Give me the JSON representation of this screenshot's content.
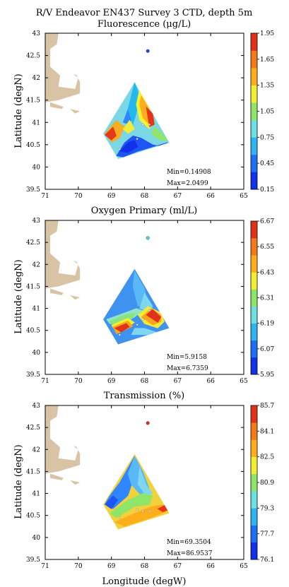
{
  "chart_data": [
    {
      "type": "contour-map",
      "title": "R/V Endeavor EN437 Survey 3 CTD, depth 5m",
      "subtitle": "Fluorescence (μg/L)",
      "xlabel": "",
      "ylabel": "Latitude (degN)",
      "xlim": [
        -71,
        -65
      ],
      "ylim": [
        39.5,
        43
      ],
      "x_ticks": [
        "71",
        "70",
        "69",
        "68",
        "67",
        "66",
        "65"
      ],
      "y_ticks": [
        "43",
        "42.5",
        "42",
        "41.5",
        "41",
        "40.5",
        "40",
        "39.5"
      ],
      "colorbar_ticks": [
        "1.95",
        "1.65",
        "1.35",
        "1.05",
        "0.75",
        "0.45",
        "0.15"
      ],
      "min_text": "Min=0.14908",
      "max_text": "Max=2.0499",
      "marker_color": "#2244dd",
      "marker": {
        "lon": -67.9,
        "lat": 42.6
      },
      "stations": [
        {
          "lon": -68.22,
          "lat": 40.63
        },
        {
          "lon": -68.75,
          "lat": 40.4
        },
        {
          "lon": -68.05,
          "lat": 40.95
        },
        {
          "lon": -67.85,
          "lat": 40.95
        }
      ],
      "field": {
        "base_color": "#7ad8e6",
        "patches": [
          {
            "color": "#2f86ff",
            "poly": [
              [
                -68.3,
                41.83
              ],
              [
                -68.4,
                41.5
              ],
              [
                -68.55,
                41.2
              ],
              [
                -68.65,
                41.0
              ],
              [
                -68.45,
                40.95
              ],
              [
                -68.3,
                41.3
              ]
            ]
          },
          {
            "color": "#23b8ee",
            "poly": [
              [
                -68.3,
                41.9
              ],
              [
                -68.15,
                41.6
              ],
              [
                -68.25,
                41.2
              ],
              [
                -68.35,
                40.95
              ],
              [
                -68.5,
                41.3
              ]
            ]
          },
          {
            "color": "#f4f233",
            "poly": [
              [
                -68.15,
                41.75
              ],
              [
                -67.9,
                41.45
              ],
              [
                -67.75,
                41.05
              ],
              [
                -67.85,
                40.85
              ],
              [
                -68.15,
                41.05
              ],
              [
                -68.25,
                41.4
              ]
            ]
          },
          {
            "color": "#ffae1b",
            "poly": [
              [
                -68.1,
                41.6
              ],
              [
                -67.85,
                41.3
              ],
              [
                -67.85,
                40.95
              ],
              [
                -68.05,
                41.1
              ],
              [
                -68.15,
                41.4
              ]
            ]
          },
          {
            "color": "#e63316",
            "poly": [
              [
                -67.95,
                41.35
              ],
              [
                -67.75,
                41.2
              ],
              [
                -67.7,
                40.95
              ],
              [
                -67.85,
                40.9
              ]
            ]
          },
          {
            "color": "#8fe46a",
            "poly": [
              [
                -67.7,
                40.9
              ],
              [
                -67.45,
                40.75
              ],
              [
                -67.3,
                40.6
              ],
              [
                -67.55,
                40.6
              ],
              [
                -67.8,
                40.75
              ]
            ]
          },
          {
            "color": "#f5ad24",
            "poly": [
              [
                -69.2,
                40.75
              ],
              [
                -68.85,
                41.05
              ],
              [
                -68.6,
                40.9
              ],
              [
                -68.75,
                40.65
              ],
              [
                -69.0,
                40.55
              ]
            ]
          },
          {
            "color": "#e33a1a",
            "poly": [
              [
                -69.2,
                40.72
              ],
              [
                -68.95,
                40.9
              ],
              [
                -68.85,
                40.7
              ],
              [
                -69.0,
                40.6
              ]
            ]
          },
          {
            "color": "#f0ee3a",
            "poly": [
              [
                -68.65,
                40.85
              ],
              [
                -68.45,
                41.05
              ],
              [
                -68.3,
                40.85
              ],
              [
                -68.5,
                40.75
              ]
            ]
          },
          {
            "color": "#1f55f5",
            "poly": [
              [
                -68.85,
                40.25
              ],
              [
                -68.6,
                40.55
              ],
              [
                -68.35,
                40.7
              ],
              [
                -68.1,
                40.65
              ],
              [
                -67.75,
                40.5
              ],
              [
                -67.4,
                40.45
              ],
              [
                -67.3,
                40.55
              ],
              [
                -68.2,
                40.35
              ],
              [
                -68.65,
                40.22
              ]
            ]
          },
          {
            "color": "#1131e8",
            "poly": [
              [
                -68.75,
                40.35
              ],
              [
                -68.5,
                40.55
              ],
              [
                -68.3,
                40.6
              ],
              [
                -68.2,
                40.45
              ],
              [
                -68.5,
                40.32
              ]
            ]
          }
        ]
      }
    },
    {
      "type": "contour-map",
      "subtitle": "Oxygen Primary (ml/L)",
      "xlabel": "",
      "ylabel": "Latitude (degN)",
      "xlim": [
        -71,
        -65
      ],
      "ylim": [
        39.5,
        43
      ],
      "x_ticks": [
        "71",
        "70",
        "69",
        "68",
        "67",
        "66",
        "65"
      ],
      "y_ticks": [
        "43",
        "42.5",
        "42",
        "41.5",
        "41",
        "40.5",
        "40",
        "39.5"
      ],
      "colorbar_ticks": [
        "6.67",
        "6.55",
        "6.43",
        "6.31",
        "6.19",
        "6.07",
        "5.95"
      ],
      "min_text": "Min=5.9158",
      "max_text": "Max=6.7359",
      "marker_color": "#4fd0d8",
      "marker": {
        "lon": -67.9,
        "lat": 42.6
      },
      "stations": [
        {
          "lon": -68.22,
          "lat": 40.63
        },
        {
          "lon": -68.75,
          "lat": 40.4
        },
        {
          "lon": -68.05,
          "lat": 40.75
        },
        {
          "lon": -67.85,
          "lat": 40.95
        }
      ],
      "field": {
        "base_color": "#3f93f0",
        "patches": [
          {
            "color": "#5ab8f5",
            "poly": [
              [
                -68.3,
                41.85
              ],
              [
                -68.0,
                41.45
              ],
              [
                -67.9,
                41.1
              ],
              [
                -68.2,
                41.05
              ],
              [
                -68.35,
                41.5
              ]
            ]
          },
          {
            "color": "#7fd6ef",
            "poly": [
              [
                -68.0,
                41.35
              ],
              [
                -67.75,
                41.05
              ],
              [
                -67.85,
                40.92
              ],
              [
                -68.15,
                41.0
              ]
            ]
          },
          {
            "color": "#8de6c7",
            "poly": [
              [
                -69.15,
                40.75
              ],
              [
                -68.6,
                40.9
              ],
              [
                -68.25,
                41.0
              ],
              [
                -68.05,
                40.95
              ],
              [
                -68.3,
                40.8
              ],
              [
                -68.7,
                40.65
              ],
              [
                -69.05,
                40.65
              ]
            ]
          },
          {
            "color": "#8be37a",
            "poly": [
              [
                -69.05,
                40.7
              ],
              [
                -68.6,
                40.85
              ],
              [
                -68.25,
                40.9
              ],
              [
                -68.45,
                40.7
              ],
              [
                -68.85,
                40.55
              ]
            ]
          },
          {
            "color": "#f5ee2f",
            "poly": [
              [
                -69.0,
                40.62
              ],
              [
                -68.5,
                40.78
              ],
              [
                -68.3,
                40.68
              ],
              [
                -68.65,
                40.5
              ],
              [
                -68.85,
                40.45
              ]
            ]
          },
          {
            "color": "#f7a51b",
            "poly": [
              [
                -68.95,
                40.58
              ],
              [
                -68.5,
                40.72
              ],
              [
                -68.35,
                40.6
              ],
              [
                -68.6,
                40.5
              ],
              [
                -68.85,
                40.42
              ]
            ]
          },
          {
            "color": "#e0321a",
            "poly": [
              [
                -68.9,
                40.55
              ],
              [
                -68.55,
                40.66
              ],
              [
                -68.45,
                40.58
              ],
              [
                -68.7,
                40.46
              ]
            ]
          },
          {
            "color": "#f2ea3a",
            "poly": [
              [
                -68.2,
                40.85
              ],
              [
                -67.9,
                41.05
              ],
              [
                -67.5,
                40.9
              ],
              [
                -67.4,
                40.7
              ],
              [
                -67.6,
                40.55
              ],
              [
                -68.0,
                40.65
              ]
            ]
          },
          {
            "color": "#f7a51b",
            "poly": [
              [
                -68.1,
                40.8
              ],
              [
                -67.8,
                41.0
              ],
              [
                -67.5,
                40.85
              ],
              [
                -67.5,
                40.7
              ],
              [
                -67.75,
                40.62
              ]
            ]
          },
          {
            "color": "#e0321a",
            "poly": [
              [
                -67.95,
                40.85
              ],
              [
                -67.75,
                40.98
              ],
              [
                -67.5,
                40.8
              ],
              [
                -67.6,
                40.68
              ]
            ]
          },
          {
            "color": "#7fd6ef",
            "poly": [
              [
                -68.3,
                40.55
              ],
              [
                -68.0,
                40.55
              ],
              [
                -67.6,
                40.45
              ],
              [
                -67.4,
                40.45
              ],
              [
                -67.9,
                40.4
              ],
              [
                -68.4,
                40.4
              ]
            ]
          }
        ]
      }
    },
    {
      "type": "contour-map",
      "subtitle": "Transmission (%)",
      "xlabel": "Longitude (degW)",
      "ylabel": "Latitude (degN)",
      "xlim": [
        -71,
        -65
      ],
      "ylim": [
        39.5,
        43
      ],
      "x_ticks": [
        "71",
        "70",
        "69",
        "68",
        "67",
        "66",
        "65"
      ],
      "y_ticks": [
        "43",
        "42.5",
        "42",
        "41.5",
        "41",
        "40.5",
        "40",
        "39.5"
      ],
      "colorbar_ticks": [
        "85.7",
        "84.1",
        "82.5",
        "80.9",
        "79.3",
        "77.7",
        "76.1"
      ],
      "min_text": "Min=69.3504",
      "max_text": "Max=86.9537",
      "marker_color": "#d62a1a",
      "marker": {
        "lon": -67.9,
        "lat": 42.6
      },
      "stations": [
        {
          "lon": -68.22,
          "lat": 40.63
        },
        {
          "lon": -68.75,
          "lat": 40.45
        },
        {
          "lon": -68.05,
          "lat": 40.6
        },
        {
          "lon": -67.85,
          "lat": 40.6
        }
      ],
      "field": {
        "base_color": "#f2d23a",
        "patches": [
          {
            "color": "#2f86ff",
            "poly": [
              [
                -68.3,
                41.85
              ],
              [
                -68.75,
                41.25
              ],
              [
                -69.05,
                40.95
              ],
              [
                -69.2,
                40.75
              ],
              [
                -68.95,
                40.65
              ],
              [
                -68.5,
                40.95
              ],
              [
                -68.3,
                41.4
              ]
            ]
          },
          {
            "color": "#1f55f5",
            "poly": [
              [
                -69.2,
                40.75
              ],
              [
                -68.95,
                40.95
              ],
              [
                -68.8,
                40.85
              ],
              [
                -69.0,
                40.65
              ]
            ]
          },
          {
            "color": "#5ab8f5",
            "poly": [
              [
                -68.3,
                41.85
              ],
              [
                -68.05,
                41.5
              ],
              [
                -67.85,
                41.1
              ],
              [
                -68.1,
                40.95
              ],
              [
                -68.4,
                41.2
              ],
              [
                -68.5,
                41.45
              ]
            ]
          },
          {
            "color": "#7fd6ef",
            "poly": [
              [
                -68.15,
                41.6
              ],
              [
                -67.95,
                41.2
              ],
              [
                -67.75,
                41.0
              ],
              [
                -67.95,
                40.95
              ],
              [
                -68.2,
                41.2
              ]
            ]
          },
          {
            "color": "#8fe46a",
            "poly": [
              [
                -69.05,
                40.55
              ],
              [
                -68.5,
                40.85
              ],
              [
                -68.05,
                41.0
              ],
              [
                -67.75,
                40.95
              ],
              [
                -67.85,
                40.75
              ],
              [
                -68.3,
                40.7
              ],
              [
                -68.85,
                40.45
              ]
            ]
          },
          {
            "color": "#ffae1b",
            "poly": [
              [
                -68.9,
                40.35
              ],
              [
                -68.3,
                40.55
              ],
              [
                -67.8,
                40.7
              ],
              [
                -67.45,
                40.75
              ],
              [
                -67.3,
                40.6
              ],
              [
                -67.8,
                40.45
              ],
              [
                -68.6,
                40.25
              ]
            ]
          },
          {
            "color": "#e63316",
            "poly": [
              [
                -67.6,
                40.65
              ],
              [
                -67.35,
                40.75
              ],
              [
                -67.3,
                40.62
              ],
              [
                -67.45,
                40.58
              ]
            ]
          }
        ]
      }
    }
  ]
}
